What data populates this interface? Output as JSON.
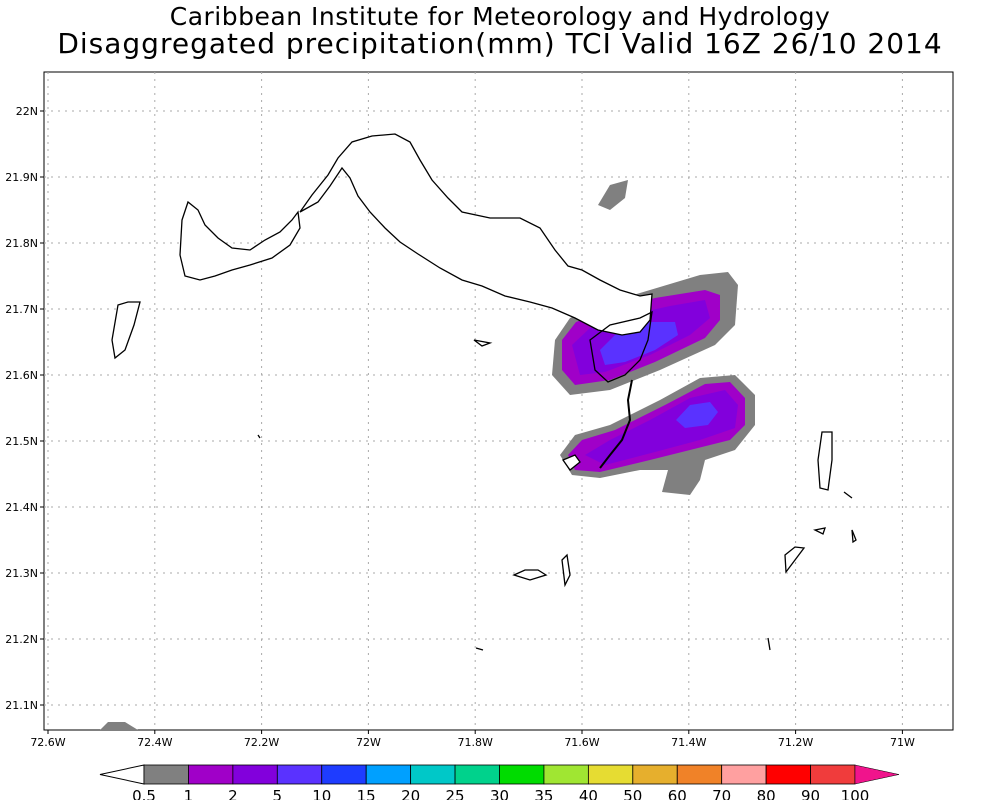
{
  "title": {
    "line1": "Caribbean Institute for Meteorology and Hydrology",
    "line2": "Disaggregated precipitation(mm) TCI Valid 16Z 26/10 2014"
  },
  "axes": {
    "lon_ticks": [
      "72.6W",
      "72.4W",
      "72.2W",
      "72W",
      "71.8W",
      "71.6W",
      "71.4W",
      "71.2W",
      "71W"
    ],
    "lon_values": [
      72.6,
      72.4,
      72.2,
      72.0,
      71.8,
      71.6,
      71.4,
      71.2,
      71.0
    ],
    "lat_ticks": [
      "22N",
      "21.9N",
      "21.8N",
      "21.7N",
      "21.6N",
      "21.5N",
      "21.4N",
      "21.3N",
      "21.2N",
      "21.1N"
    ],
    "lat_values": [
      22.0,
      21.9,
      21.8,
      21.7,
      21.6,
      21.5,
      21.4,
      21.3,
      21.2,
      21.1
    ]
  },
  "legend": {
    "labels": [
      "0.5",
      "1",
      "2",
      "5",
      "10",
      "15",
      "20",
      "25",
      "30",
      "35",
      "40",
      "50",
      "60",
      "70",
      "80",
      "90",
      "100"
    ],
    "under_color": "#ffffff",
    "colors": [
      "#808080",
      "#a000c8",
      "#8200dc",
      "#5a32ff",
      "#1e3cff",
      "#00a0ff",
      "#00c8c8",
      "#00d28c",
      "#00dc00",
      "#a0e632",
      "#e6dc32",
      "#e6af2d",
      "#f08228",
      "#ffa0a0",
      "#ff0000",
      "#f03c3c"
    ],
    "over_color": "#f0148c"
  }
}
